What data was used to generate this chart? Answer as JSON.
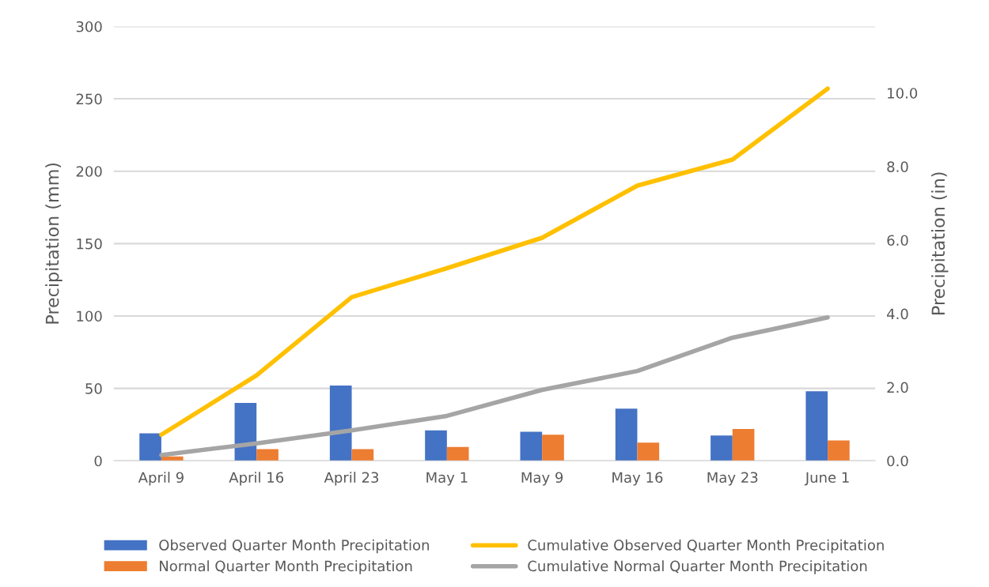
{
  "chart_data": {
    "type": "bar",
    "ylabel": "Precipitation (mm)",
    "y2label": "Precipitation (in)",
    "categories": [
      "April 9",
      "April 16",
      "April 23",
      "May 1",
      "May 9",
      "May 16",
      "May 23",
      "June 1"
    ],
    "series": [
      {
        "name": "Observed Quarter Month Precipitation",
        "color": "#4472c4",
        "values": [
          19,
          40,
          52,
          21,
          20,
          36,
          17.5,
          48
        ]
      },
      {
        "name": "Normal Quarter Month Precipitation",
        "color": "#ed7d31",
        "values": [
          3,
          8,
          8,
          9.5,
          18,
          12.5,
          22,
          14
        ]
      },
      {
        "name": "Cumulative Observed Quarter Month Precipitation",
        "type": "line",
        "color": "#ffc000",
        "values": [
          18,
          59,
          113,
          133,
          154,
          190,
          208,
          257
        ]
      },
      {
        "name": "Cumulative Normal Quarter Month Precipitation",
        "type": "line",
        "color": "#a5a5a5",
        "values": [
          4,
          12,
          21,
          31,
          49,
          62,
          85,
          99
        ]
      }
    ],
    "ylim": [
      0,
      300
    ],
    "yticks": [
      0,
      50,
      100,
      150,
      200,
      250,
      300
    ],
    "y2lim": [
      0,
      11.81
    ],
    "y2ticks": [
      {
        "value": 0,
        "label": "0.0"
      },
      {
        "value": 2,
        "label": "2.0"
      },
      {
        "value": 4,
        "label": "4.0"
      },
      {
        "value": 6,
        "label": "6.0"
      },
      {
        "value": 8,
        "label": "8.0"
      },
      {
        "value": 10,
        "label": "10.0"
      }
    ],
    "grid": "y",
    "legend": "bottom",
    "marker": "none",
    "line_style": "solid"
  }
}
